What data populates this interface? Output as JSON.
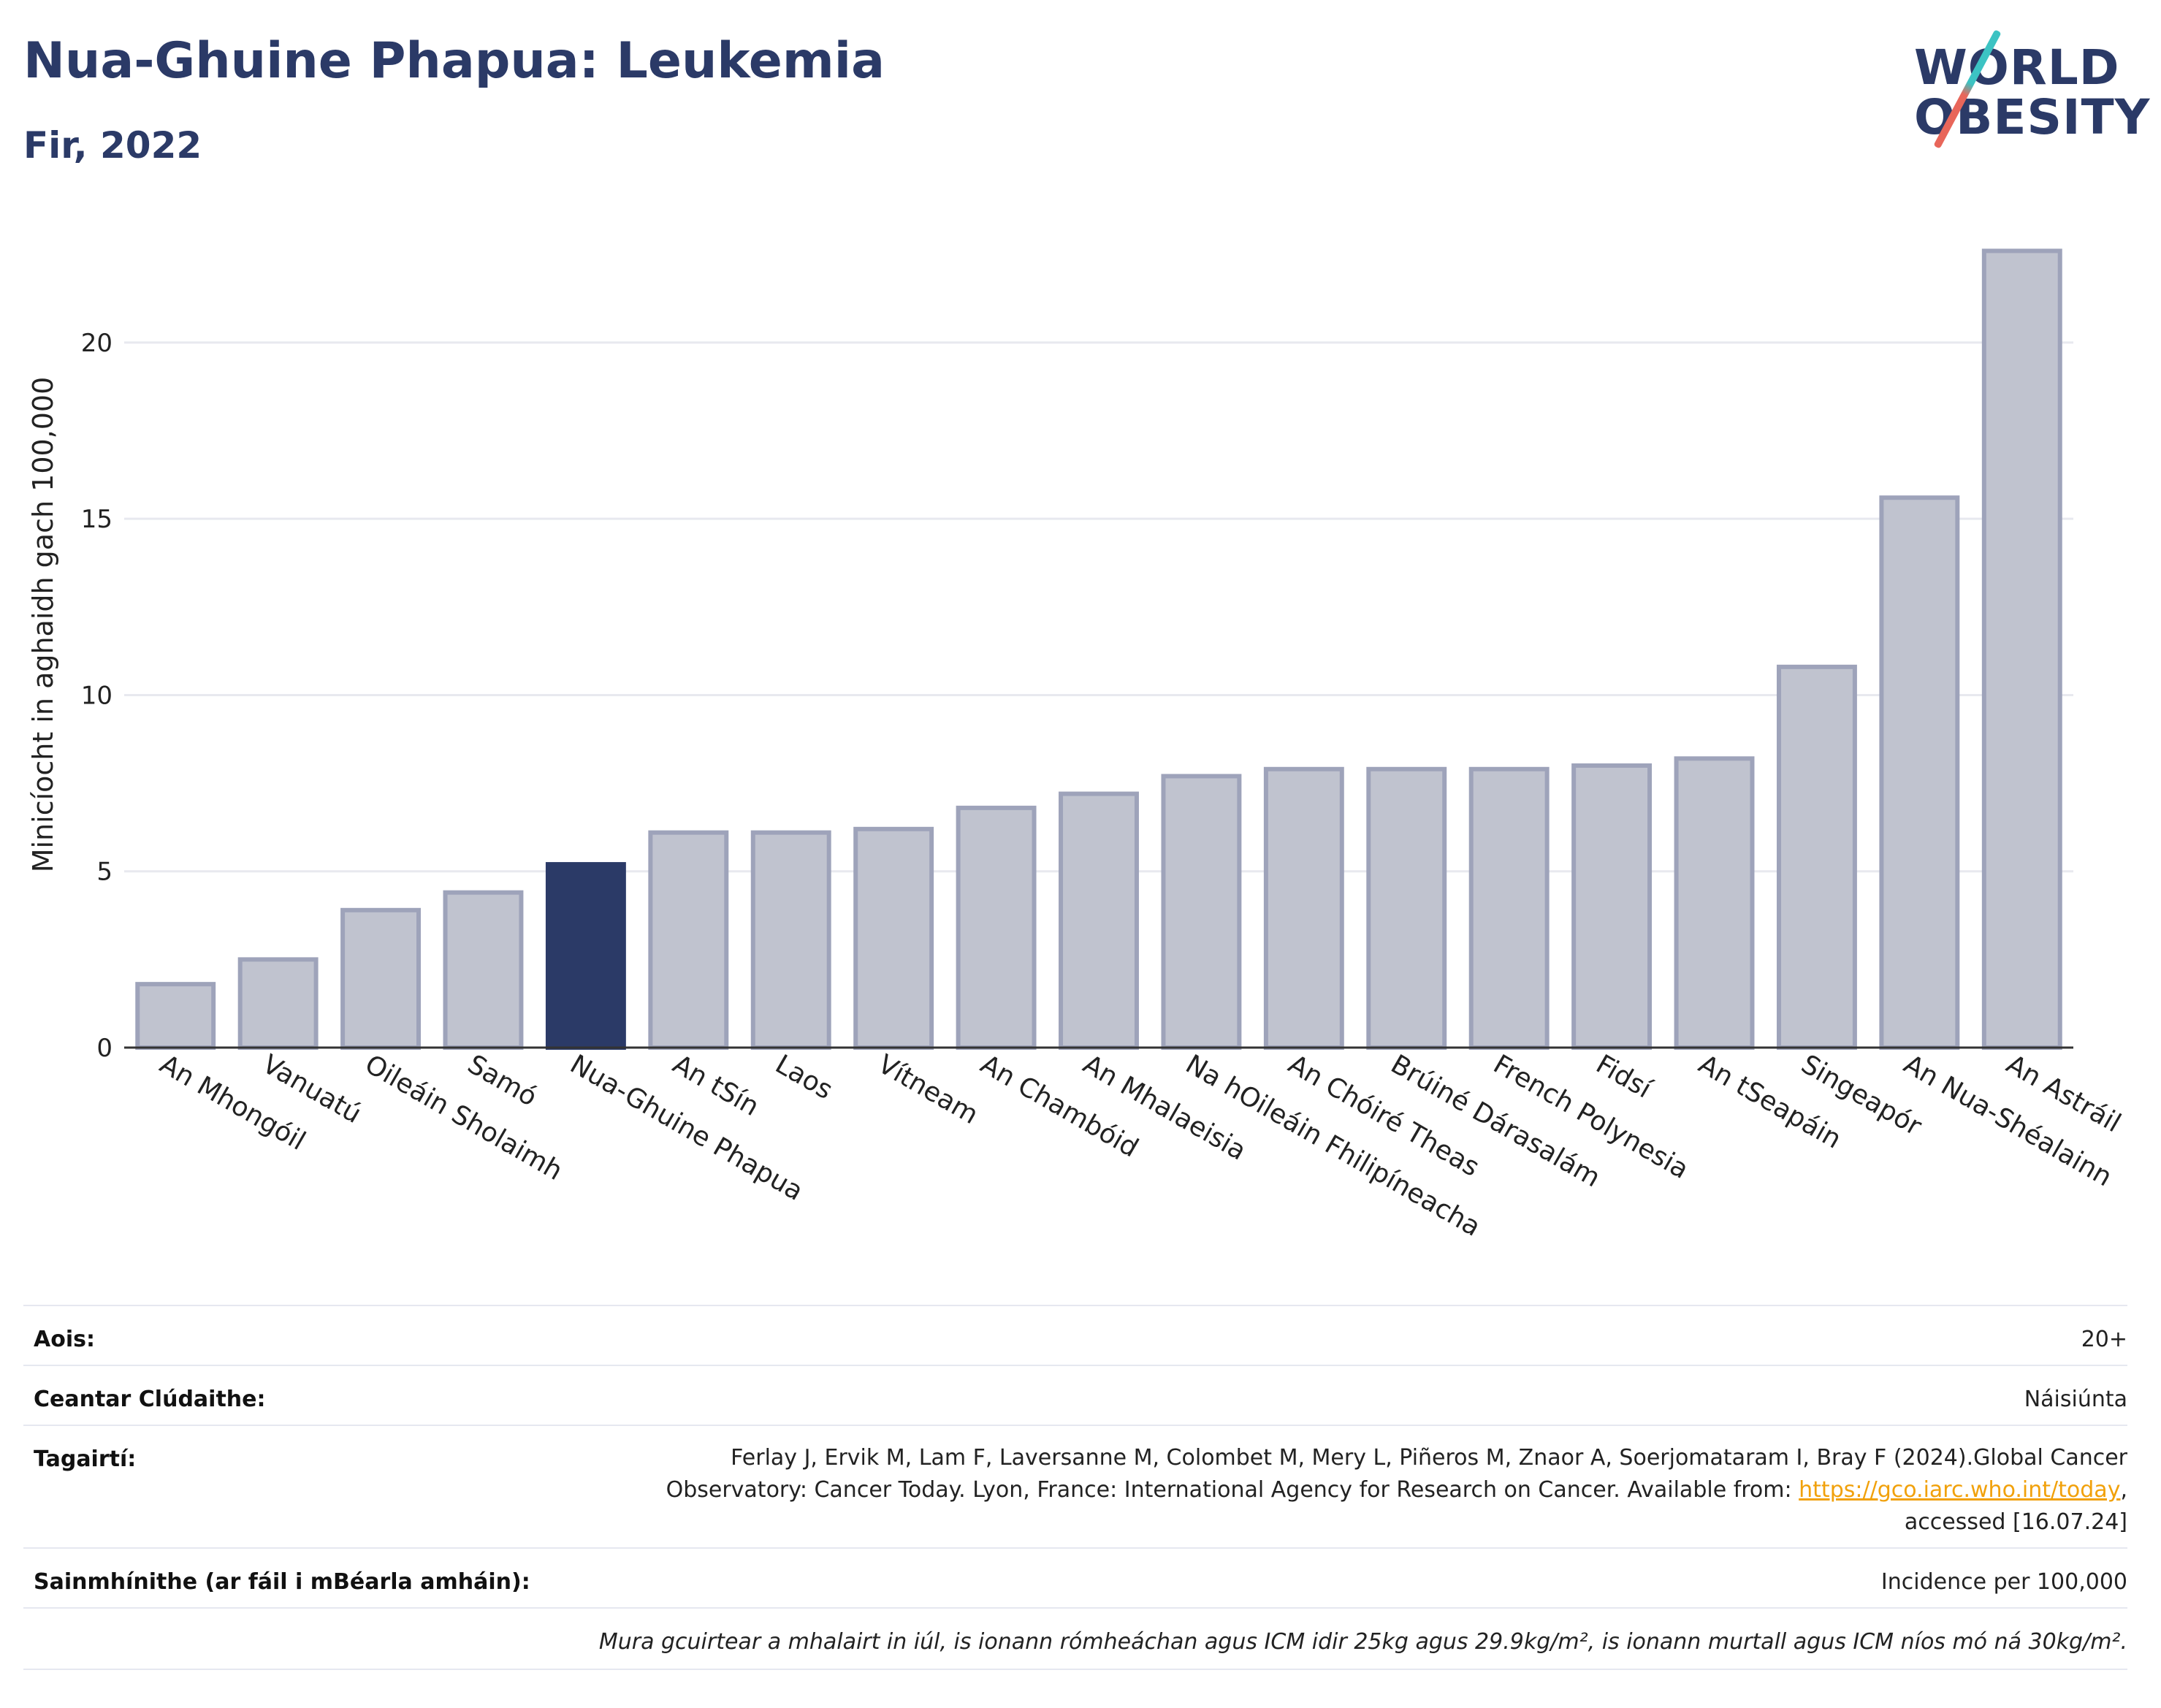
{
  "header": {
    "title": "Nua-Ghuine Phapua: Leukemia",
    "subtitle": "Fir, 2022"
  },
  "logo": {
    "line1": "WORLD",
    "line2": "OBESITY"
  },
  "chart_data": {
    "type": "bar",
    "ylabel": "Minicíocht in aghaidh gach 100,000",
    "ylim": [
      0,
      23.5
    ],
    "yticks": [
      0,
      5,
      10,
      15,
      20
    ],
    "grid": true,
    "highlight": "Nua-Ghuine Phapua",
    "colors": {
      "highlight": "#2b3a67",
      "bar": "#c0c3cf",
      "bar_edge": "#9ea3ba",
      "grid": "#e8e9ef"
    },
    "categories": [
      "An Mhongóil",
      "Vanuatú",
      "Oileáin Sholaimh",
      "Samó",
      "Nua-Ghuine Phapua",
      "An tSín",
      "Laos",
      "Vítneam",
      "An Chambóid",
      "An Mhalaeisia",
      "Na hOileáin Fhilipíneacha",
      "An Chóiré Theas",
      "Brúiné Dárasalám",
      "French Polynesia",
      "Fidsí",
      "An tSeapáin",
      "Singeapór",
      "An Nua-Shéalainn",
      "An Astráil"
    ],
    "values": [
      1.8,
      2.5,
      3.9,
      4.4,
      5.2,
      6.1,
      6.1,
      6.2,
      6.8,
      7.2,
      7.7,
      7.9,
      7.9,
      7.9,
      8.0,
      8.2,
      10.8,
      15.6,
      22.6
    ]
  },
  "info": {
    "age_label": "Aois:",
    "age_value": "20+",
    "coverage_label": "Ceantar Clúdaithe:",
    "coverage_value": "Náisiúnta",
    "refs_label": "Tagairtí:",
    "refs_line1": "Ferlay J, Ervik M, Lam F, Laversanne M, Colombet M, Mery L, Piñeros M, Znaor A, Soerjomataram I, Bray F (2024).Global Cancer",
    "refs_line2": "Observatory: Cancer Today. Lyon, France: International Agency for Research on Cancer. Available from: ",
    "refs_link": "https://gco.iarc.who.int/today",
    "refs_line2_end": ",",
    "refs_line3": "accessed [16.07.24]",
    "defs_label": "Sainmhínithe (ar fáil i mBéarla amháin):",
    "defs_value": "Incidence per 100,000",
    "note": "Mura gcuirtear a mhalairt in iúl, is ionann rómheáchan agus ICM idir 25kg agus 29.9kg/m², is ionann murtall agus ICM níos mó ná 30kg/m²."
  }
}
